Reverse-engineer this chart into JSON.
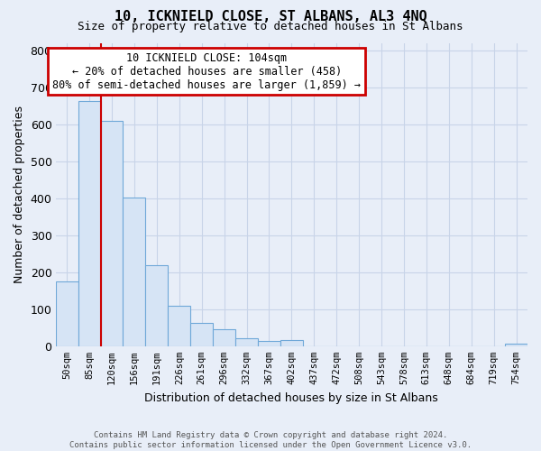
{
  "title": "10, ICKNIELD CLOSE, ST ALBANS, AL3 4NQ",
  "subtitle": "Size of property relative to detached houses in St Albans",
  "xlabel": "Distribution of detached houses by size in St Albans",
  "ylabel": "Number of detached properties",
  "bar_labels": [
    "50sqm",
    "85sqm",
    "120sqm",
    "156sqm",
    "191sqm",
    "226sqm",
    "261sqm",
    "296sqm",
    "332sqm",
    "367sqm",
    "402sqm",
    "437sqm",
    "472sqm",
    "508sqm",
    "543sqm",
    "578sqm",
    "613sqm",
    "648sqm",
    "684sqm",
    "719sqm",
    "754sqm"
  ],
  "bar_values": [
    175,
    662,
    610,
    403,
    218,
    110,
    62,
    47,
    22,
    14,
    17,
    0,
    0,
    0,
    0,
    0,
    0,
    0,
    0,
    0,
    7
  ],
  "bar_color": "#d6e4f5",
  "bar_edge_color": "#6fa8d8",
  "property_line_x": 1.5,
  "annotation_title": "10 ICKNIELD CLOSE: 104sqm",
  "annotation_line1": "← 20% of detached houses are smaller (458)",
  "annotation_line2": "80% of semi-detached houses are larger (1,859) →",
  "annotation_box_color": "#ffffff",
  "annotation_box_edge": "#cc0000",
  "property_line_color": "#cc0000",
  "ylim": [
    0,
    820
  ],
  "yticks": [
    0,
    100,
    200,
    300,
    400,
    500,
    600,
    700,
    800
  ],
  "grid_color": "#c8d4e8",
  "bg_color": "#e8eef8",
  "footer_line1": "Contains HM Land Registry data © Crown copyright and database right 2024.",
  "footer_line2": "Contains public sector information licensed under the Open Government Licence v3.0."
}
